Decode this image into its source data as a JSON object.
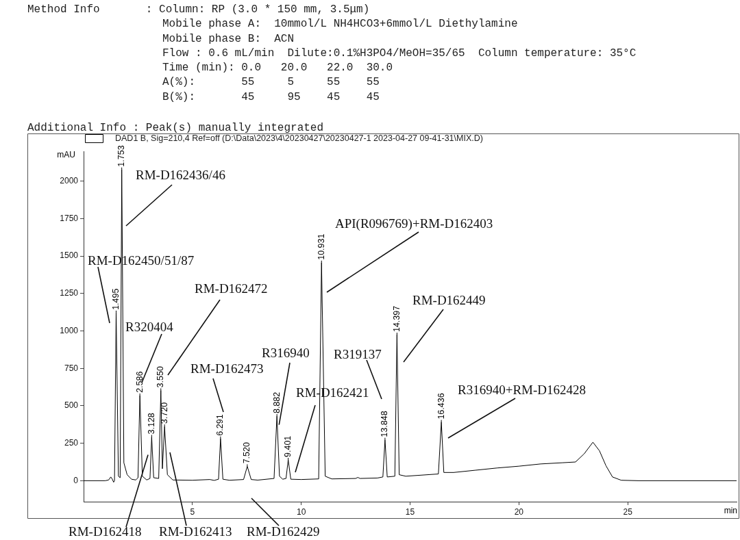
{
  "chart_data": {
    "type": "line",
    "xlabel": "min",
    "ylabel": "mAU",
    "xlim": [
      0,
      30
    ],
    "xticks": [
      5,
      10,
      15,
      20,
      25
    ],
    "ylim": [
      -140,
      2200
    ],
    "yticks": [
      0,
      250,
      500,
      750,
      1000,
      1250,
      1500,
      1750,
      2000
    ],
    "grid": false,
    "legend": "top left",
    "marker": "none",
    "line_style": "solid",
    "series": [
      {
        "name": "DAD1 B, Sig=210,4 Ref=off (D:\\Data\\2023\\4\\20230427\\20230427-1 2023-04-27 09-41-31\\MIX.D)",
        "color": "#000000",
        "x": [
          0,
          1.0,
          1.15,
          1.25,
          1.32,
          1.38,
          1.42,
          1.495,
          1.6,
          1.68,
          1.753,
          1.85,
          2.0,
          2.2,
          2.4,
          2.5,
          2.586,
          2.7,
          2.9,
          3.05,
          3.128,
          3.22,
          3.45,
          3.55,
          3.62,
          3.72,
          3.85,
          4.1,
          5.0,
          5.8,
          6.0,
          6.2,
          6.291,
          6.4,
          6.7,
          7.35,
          7.52,
          7.7,
          8.0,
          8.75,
          8.882,
          9.0,
          9.15,
          9.3,
          9.401,
          9.52,
          10.0,
          10.8,
          10.931,
          11.1,
          11.4,
          12.5,
          12.6,
          12.7,
          13.5,
          13.75,
          13.848,
          13.95,
          14.3,
          14.397,
          14.5,
          14.8,
          16.3,
          16.436,
          16.55,
          17,
          18,
          19,
          20,
          21,
          22,
          22.6,
          23.0,
          23.4,
          23.7,
          24.0,
          24.3,
          24.7,
          25.5,
          30
        ],
        "values": [
          0,
          0,
          5,
          25,
          10,
          -10,
          0,
          1122,
          30,
          20,
          2078,
          120,
          40,
          10,
          5,
          20,
          569,
          30,
          5,
          15,
          292,
          20,
          15,
          603,
          80,
          362,
          40,
          5,
          3,
          8,
          2,
          10,
          282,
          10,
          3,
          8,
          96,
          8,
          4,
          15,
          431,
          30,
          10,
          15,
          139,
          10,
          8,
          12,
          1456,
          30,
          12,
          15,
          22,
          15,
          18,
          25,
          273,
          25,
          30,
          975,
          40,
          30,
          45,
          392,
          55,
          55,
          70,
          85,
          97,
          112,
          120,
          125,
          180,
          257,
          200,
          100,
          25,
          3,
          0,
          0
        ]
      }
    ],
    "annotations": [
      "Method Info       : Column: RP (3.0 * 150 mm, 3.5μm)",
      "Mobile phase A:  10mmol/L NH4HCO3+6mmol/L Diethylamine",
      "Mobile phase B:  ACN",
      "Flow : 0.6 mL/min  Dilute:0.1%H3PO4/MeOH=35/65  Column temperature: 35°C",
      "Time (min): 0.0   20.0   22.0  30.0",
      "A(%):       55     5     55    55",
      "B(%):       45     95    45    45",
      "Additional Info : Peak(s) manually integrated",
      {
        "text": "1.495",
        "x": 1.495,
        "y": 1122
      },
      {
        "text": "1.753",
        "x": 1.753,
        "y": 2078
      },
      {
        "text": "2.586",
        "x": 2.586,
        "y": 569
      },
      {
        "text": "3.128",
        "x": 3.128,
        "y": 292
      },
      {
        "text": "3.550",
        "x": 3.55,
        "y": 603
      },
      {
        "text": "3.720",
        "x": 3.72,
        "y": 362
      },
      {
        "text": "6.291",
        "x": 6.291,
        "y": 282
      },
      {
        "text": "7.520",
        "x": 7.52,
        "y": 96
      },
      {
        "text": "8.882",
        "x": 8.882,
        "y": 431
      },
      {
        "text": "9.401",
        "x": 9.401,
        "y": 139
      },
      {
        "text": "10.931",
        "x": 10.931,
        "y": 1456
      },
      {
        "text": "13.848",
        "x": 13.848,
        "y": 273
      },
      {
        "text": "14.397",
        "x": 14.397,
        "y": 975
      },
      {
        "text": "16.436",
        "x": 16.436,
        "y": 392
      },
      "RM-D162450/51/87",
      "RM-D162436/46",
      "R320404",
      "RM-D162472",
      {
        "text": "RM-D162418",
        "x": 2.96,
        "y": 173
      },
      "RM-D162413",
      "RM-D162473",
      "RM-D162429",
      {
        "text": "R316940",
        "x": 8.98,
        "y": 374
      },
      "RM-D162421",
      "API(R096769)+RM-D162403",
      "R319137",
      "RM-D162449",
      "R316940+RM-D162428"
    ]
  }
}
